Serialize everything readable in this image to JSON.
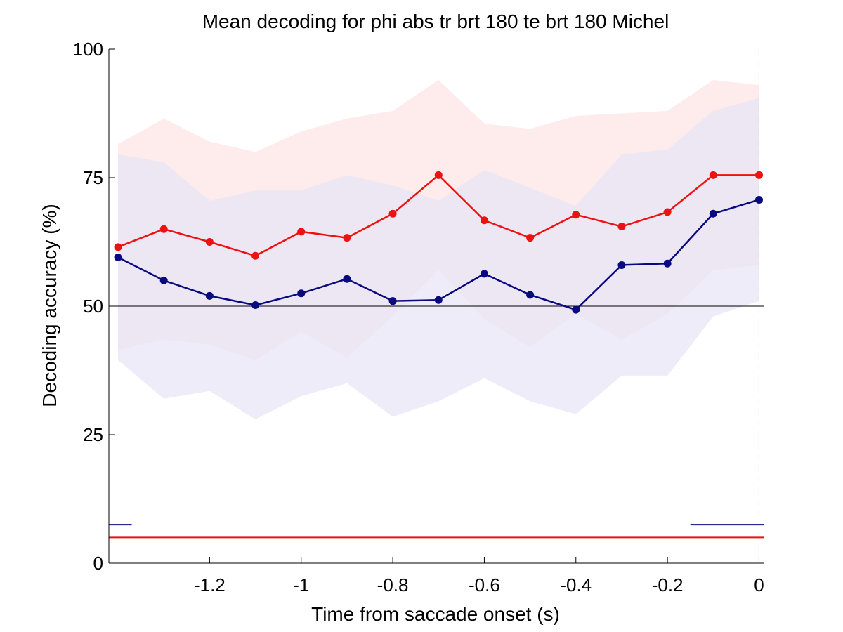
{
  "chart_data": {
    "type": "line",
    "title": "Mean decoding for phi abs tr brt 180 te brt 180  Michel",
    "xlabel": "Time from saccade onset (s)",
    "ylabel": "Decoding accuracy (%)",
    "xlim": [
      -1.42,
      0.01
    ],
    "ylim": [
      0,
      100
    ],
    "xticks": [
      -1.2,
      -1,
      -0.8,
      -0.6,
      -0.4,
      -0.2,
      0
    ],
    "xtick_labels": [
      "-1.2",
      "-1",
      "-0.8",
      "-0.6",
      "-0.4",
      "-0.2",
      "0"
    ],
    "yticks": [
      0,
      25,
      50,
      75,
      100
    ],
    "ytick_labels": [
      "0",
      "25",
      "50",
      "75",
      "100"
    ],
    "grid": false,
    "x": [
      -1.4,
      -1.3,
      -1.2,
      -1.1,
      -1.0,
      -0.9,
      -0.8,
      -0.7,
      -0.6,
      -0.5,
      -0.4,
      -0.3,
      -0.2,
      -0.1,
      0.0
    ],
    "series": [
      {
        "color": "#ee1111",
        "band_color": "#fde4e6",
        "values": [
          61.5,
          65.0,
          62.5,
          59.8,
          64.5,
          63.3,
          68.0,
          75.5,
          66.7,
          63.3,
          67.8,
          65.5,
          68.3,
          75.5,
          75.5
        ],
        "band_upper": [
          81.5,
          86.5,
          82.0,
          80.0,
          84.0,
          86.5,
          88.0,
          94.0,
          85.5,
          84.5,
          87.0,
          87.5,
          88.0,
          94.0,
          93.0
        ],
        "band_lower": [
          41.5,
          43.5,
          42.5,
          39.5,
          45.0,
          40.0,
          48.0,
          57.0,
          47.5,
          42.0,
          48.5,
          43.5,
          48.5,
          57.0,
          58.0
        ]
      },
      {
        "color": "#0a0a80",
        "band_color": "#e7e6f5",
        "values": [
          59.5,
          55.0,
          52.0,
          50.2,
          52.5,
          55.3,
          51.0,
          51.2,
          56.3,
          52.2,
          49.3,
          58.0,
          58.3,
          68.0,
          70.7
        ],
        "band_upper": [
          79.5,
          78.0,
          70.5,
          72.5,
          72.5,
          75.5,
          73.5,
          70.5,
          76.5,
          73.0,
          69.5,
          79.5,
          80.5,
          88.0,
          90.5
        ],
        "band_lower": [
          39.5,
          32.0,
          33.5,
          28.0,
          32.5,
          35.0,
          28.5,
          31.5,
          36.0,
          31.5,
          29.0,
          36.5,
          36.5,
          48.0,
          51.0
        ]
      }
    ],
    "reference_lines": [
      {
        "axis": "y",
        "value": 50,
        "color": "#000000",
        "style": "solid"
      },
      {
        "axis": "x",
        "value": 0,
        "color": "#000000",
        "style": "dashed"
      }
    ],
    "significance_bars": [
      {
        "color": "#0a0a80",
        "y": 7.5,
        "segments": [
          [
            -1.42,
            -1.37
          ],
          [
            -0.15,
            0.01
          ]
        ]
      },
      {
        "color": "#ee1111",
        "y": 5.0,
        "segments": [
          [
            -1.42,
            0.01
          ]
        ]
      }
    ]
  }
}
